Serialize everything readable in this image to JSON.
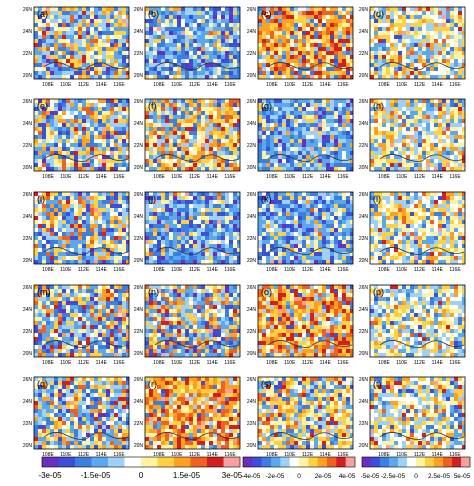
{
  "axes": {
    "lat_labels": [
      "26N",
      "24N",
      "22N",
      "20N"
    ],
    "lon_labels": [
      "108E",
      "110E",
      "112E",
      "114E",
      "116E"
    ]
  },
  "panels": [
    {
      "label": "(a)",
      "scheme": "cb1",
      "theme": "mixed"
    },
    {
      "label": "(b)",
      "scheme": "cb1",
      "theme": "blue"
    },
    {
      "label": "(c)",
      "scheme": "cb2",
      "theme": "warm"
    },
    {
      "label": "(d)",
      "scheme": "cb3",
      "theme": "light"
    },
    {
      "label": "(e)",
      "scheme": "cb1",
      "theme": "mixed"
    },
    {
      "label": "(f)",
      "scheme": "cb1",
      "theme": "yellowmix"
    },
    {
      "label": "(g)",
      "scheme": "cb2",
      "theme": "blue"
    },
    {
      "label": "(h)",
      "scheme": "cb3",
      "theme": "light"
    },
    {
      "label": "(i)",
      "scheme": "cb1",
      "theme": "mixed"
    },
    {
      "label": "(j)",
      "scheme": "cb1",
      "theme": "blue"
    },
    {
      "label": "(k)",
      "scheme": "cb2",
      "theme": "blue"
    },
    {
      "label": "(l)",
      "scheme": "cb3",
      "theme": "light"
    },
    {
      "label": "(m)",
      "scheme": "cb1",
      "theme": "mixed"
    },
    {
      "label": "(n)",
      "scheme": "cb1",
      "theme": "mixed"
    },
    {
      "label": "(o)",
      "scheme": "cb2",
      "theme": "warm"
    },
    {
      "label": "(p)",
      "scheme": "cb3",
      "theme": "light"
    },
    {
      "label": "(q)",
      "scheme": "cb1",
      "theme": "mixed"
    },
    {
      "label": "(r)",
      "scheme": "cb1",
      "theme": "warm"
    },
    {
      "label": "(s)",
      "scheme": "cb2",
      "theme": "yellowmix"
    },
    {
      "label": "(t)",
      "scheme": "cb3",
      "theme": "light"
    }
  ],
  "colorbars": [
    {
      "id": "cb1",
      "ticks": [
        "-3e-05",
        "-1.5e-05",
        "0",
        "1.5e-05",
        "3e-05"
      ]
    },
    {
      "id": "cb2",
      "ticks": [
        "-4e-05",
        "-2e-05",
        "0",
        "2e-05",
        "4e-05"
      ]
    },
    {
      "id": "cb3",
      "ticks": [
        "-5e-05",
        "-2.5e-05",
        "0",
        "2.5e-05",
        "5e-05"
      ]
    }
  ],
  "palette": [
    "#6a2fbf",
    "#3b4fd8",
    "#3b7fe0",
    "#5aa8f0",
    "#9fd0f5",
    "#ffffff",
    "#fff2a0",
    "#ffd040",
    "#ffa020",
    "#f06020",
    "#d02020",
    "#f7a0a0"
  ]
}
